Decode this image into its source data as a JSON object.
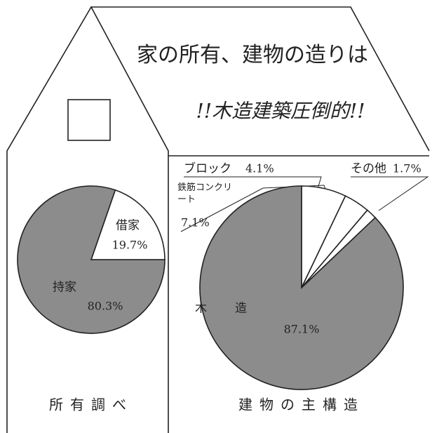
{
  "title": "家の所有、建物の造りは",
  "subtitle": "!!木造建築圧倒的!!",
  "chart_data": [
    {
      "type": "pie",
      "title": "所有調べ",
      "categories": [
        "借家",
        "持家"
      ],
      "values": [
        19.7,
        80.3
      ],
      "value_labels": [
        "19.7%",
        "80.3%"
      ],
      "colors": [
        "#ffffff",
        "#8c8c8c"
      ]
    },
    {
      "type": "pie",
      "title": "建物の主構造",
      "categories": [
        "鉄筋コンクリート",
        "ブロック",
        "その他",
        "木造"
      ],
      "values": [
        7.1,
        4.1,
        1.7,
        87.1
      ],
      "value_labels": [
        "7.1%",
        "4.1%",
        "1.7%",
        "87.1%"
      ],
      "colors": [
        "#ffffff",
        "#ffffff",
        "#ffffff",
        "#8c8c8c"
      ]
    }
  ]
}
